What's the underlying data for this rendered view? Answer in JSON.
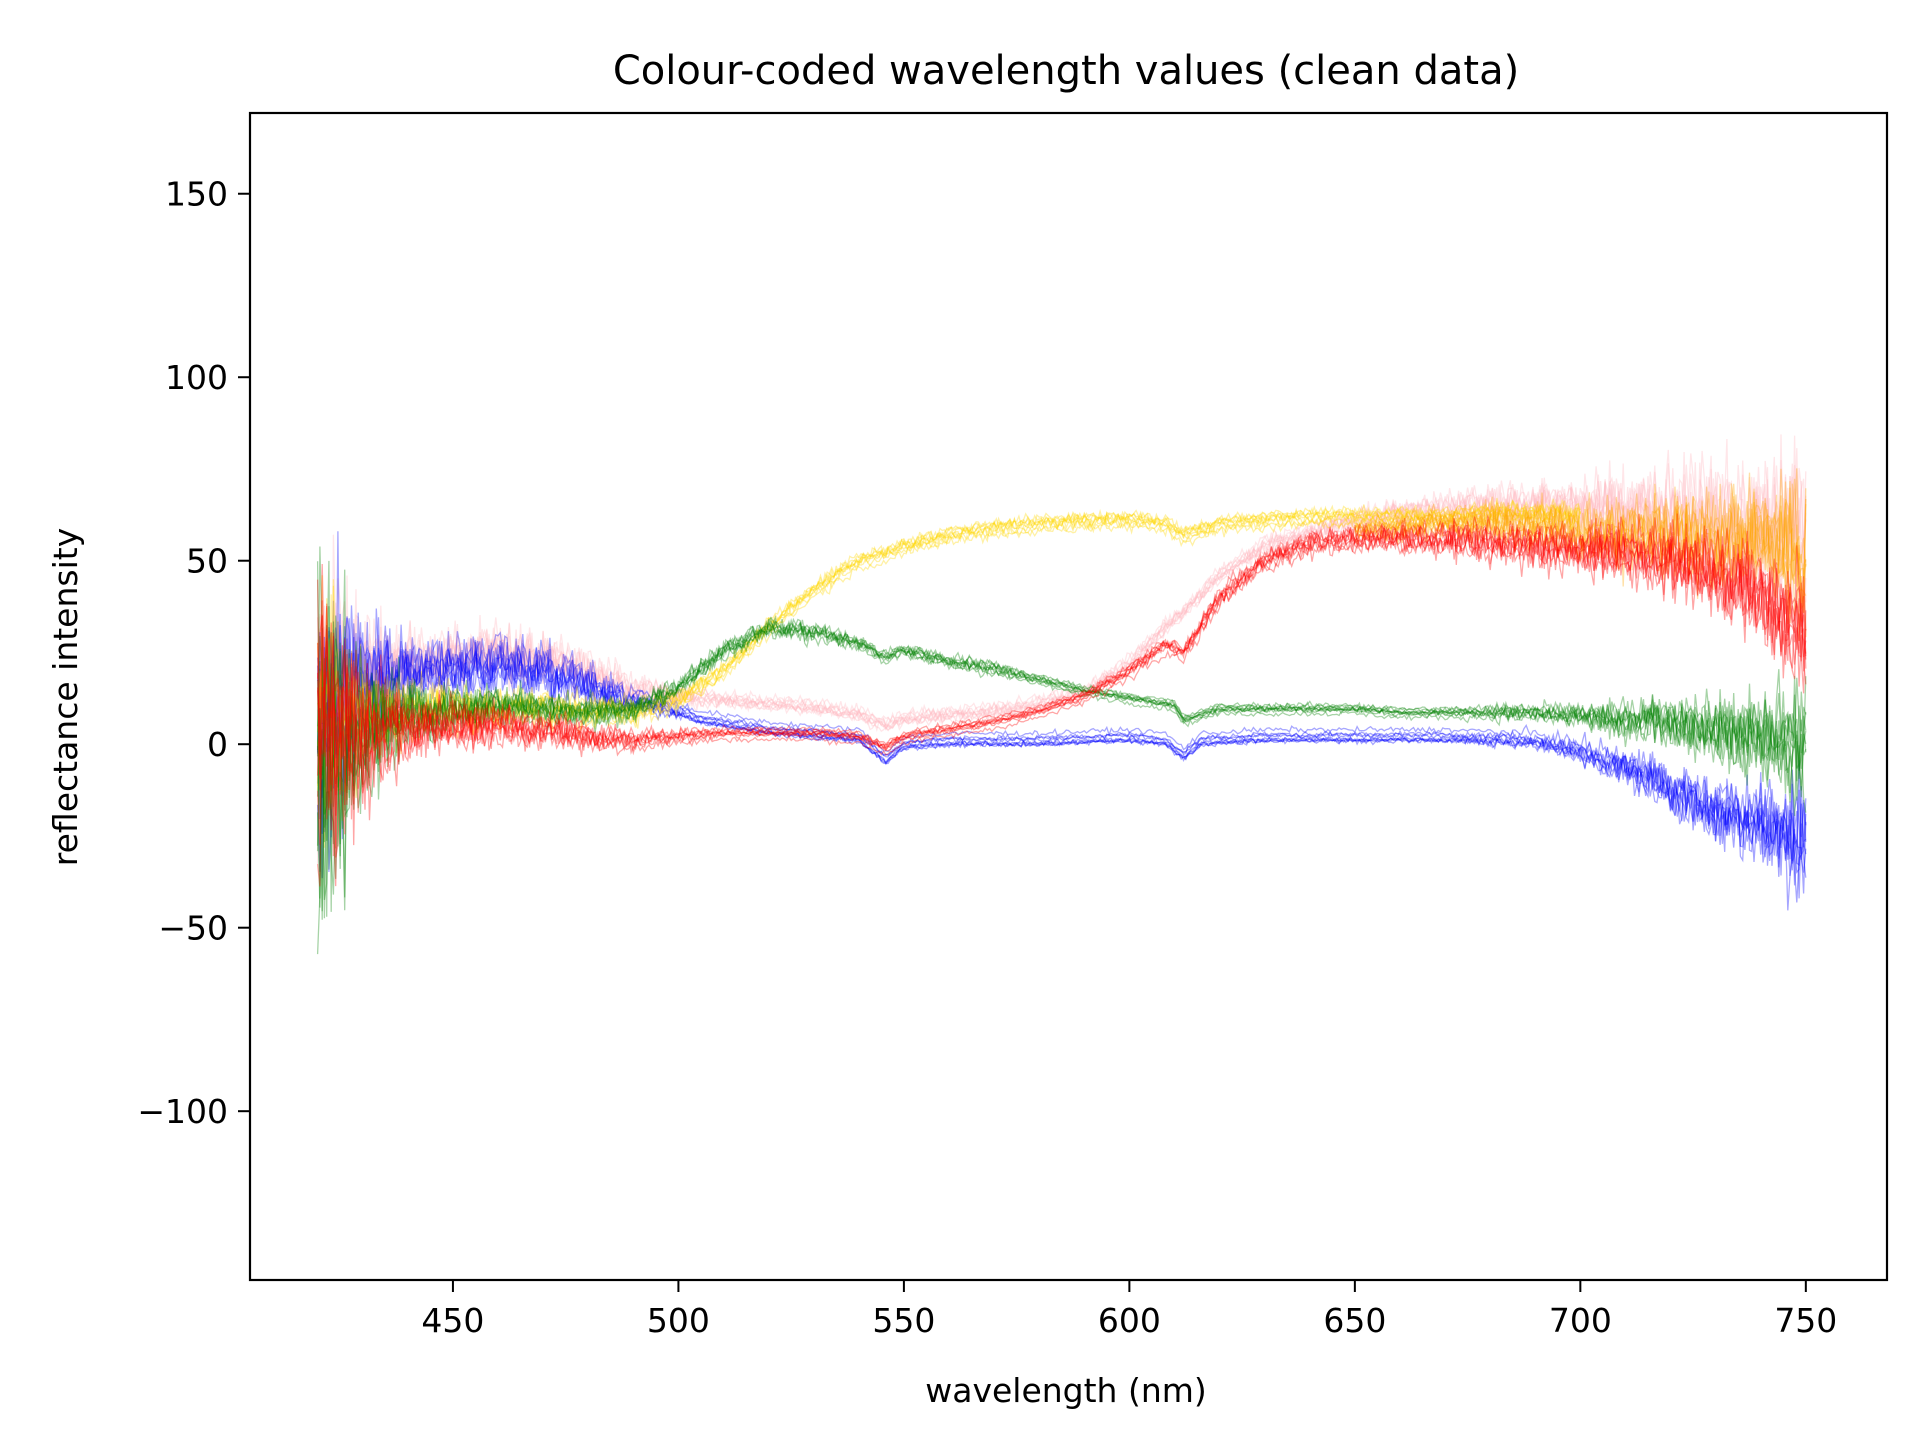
{
  "chart_data": {
    "type": "line",
    "title": "Colour-coded wavelength values (clean data)",
    "xlabel": "wavelength (nm)",
    "ylabel": "reflectance intensity",
    "xlim": [
      405,
      768
    ],
    "ylim": [
      -146,
      172
    ],
    "xticks": [
      450,
      500,
      550,
      600,
      650,
      700,
      750
    ],
    "yticks": [
      -100,
      -50,
      0,
      50,
      100,
      150
    ],
    "ytick_labels": [
      "−100",
      "−50",
      "0",
      "50",
      "100",
      "150"
    ],
    "grid": false,
    "legend": "none",
    "x_range": [
      420,
      751
    ],
    "series": [
      {
        "color": "#ffb6c1",
        "x": [
          420,
          430,
          440,
          450,
          460,
          470,
          480,
          490,
          500,
          510,
          520,
          530,
          540,
          546,
          550,
          560,
          570,
          580,
          590,
          600,
          608,
          612,
          620,
          630,
          640,
          650,
          660,
          670,
          680,
          690,
          700,
          710,
          720,
          730,
          740,
          750
        ],
        "values": [
          10,
          18,
          22,
          24,
          25,
          24,
          20,
          15,
          13,
          12,
          11,
          10,
          8,
          5,
          7,
          8,
          9,
          11,
          14,
          22,
          32,
          36,
          46,
          54,
          58,
          61,
          63,
          64,
          65,
          65,
          64,
          63,
          62,
          60,
          58,
          55
        ],
        "noise": [
          60,
          25,
          12,
          10,
          10,
          9,
          7,
          5,
          3,
          2,
          2,
          2,
          2,
          2,
          2,
          2,
          2,
          2,
          2,
          2,
          2,
          2,
          2,
          3,
          3,
          4,
          5,
          6,
          7,
          8,
          10,
          13,
          17,
          20,
          24,
          30
        ]
      },
      {
        "color": "#0000ff",
        "x": [
          420,
          430,
          440,
          450,
          460,
          470,
          480,
          490,
          500,
          505,
          510,
          520,
          530,
          540,
          546,
          550,
          560,
          580,
          600,
          608,
          612,
          616,
          630,
          650,
          670,
          690,
          700,
          710,
          720,
          730,
          740,
          750
        ],
        "values": [
          5,
          18,
          20,
          21,
          22,
          20,
          16,
          12,
          9,
          7,
          6,
          4,
          3,
          2,
          -4,
          0,
          1,
          1,
          2,
          1,
          -3,
          1,
          2,
          2,
          2,
          1,
          -2,
          -6,
          -12,
          -18,
          -22,
          -26
        ],
        "noise": [
          60,
          25,
          12,
          10,
          10,
          9,
          7,
          4,
          2,
          1,
          1,
          1,
          1,
          1,
          1,
          1,
          1,
          1,
          1,
          1,
          1,
          1,
          1,
          1,
          1,
          2,
          3,
          6,
          9,
          11,
          15,
          25
        ]
      },
      {
        "color": "#ffd700",
        "x": [
          420,
          430,
          440,
          450,
          460,
          470,
          480,
          490,
          500,
          510,
          520,
          530,
          540,
          546,
          550,
          560,
          570,
          580,
          590,
          600,
          608,
          612,
          620,
          630,
          640,
          650,
          660,
          670,
          680,
          690,
          700
        ],
        "values": [
          8,
          8,
          9,
          10,
          10,
          10,
          9,
          9,
          12,
          20,
          32,
          42,
          50,
          52,
          54,
          57,
          59,
          60,
          61,
          61,
          60,
          57,
          60,
          61,
          62,
          62,
          62,
          62,
          63,
          63,
          62
        ],
        "noise": [
          50,
          20,
          10,
          8,
          7,
          6,
          5,
          4,
          3,
          2,
          2,
          2,
          2,
          2,
          2,
          2,
          2,
          2,
          2,
          2,
          2,
          2,
          2,
          2,
          2,
          2,
          2,
          2,
          3,
          3,
          4
        ]
      },
      {
        "color": "#008000",
        "x": [
          420,
          430,
          440,
          450,
          460,
          470,
          480,
          490,
          500,
          510,
          520,
          530,
          540,
          546,
          550,
          560,
          570,
          580,
          590,
          600,
          610,
          612,
          620,
          630,
          640,
          650,
          660,
          670,
          680,
          690,
          700,
          710,
          720,
          730,
          740,
          750
        ],
        "values": [
          -10,
          5,
          8,
          10,
          11,
          10,
          9,
          10,
          16,
          26,
          32,
          31,
          28,
          24,
          26,
          23,
          21,
          18,
          15,
          13,
          11,
          7,
          10,
          10,
          10,
          10,
          9,
          9,
          9,
          9,
          8,
          7,
          6,
          4,
          2,
          0
        ],
        "noise": [
          70,
          25,
          12,
          8,
          7,
          6,
          5,
          4,
          3,
          3,
          3,
          3,
          2,
          2,
          2,
          2,
          2,
          1,
          1,
          1,
          1,
          1,
          1,
          1,
          1,
          1,
          1,
          1,
          2,
          3,
          4,
          7,
          9,
          11,
          14,
          22
        ]
      },
      {
        "color": "#ffa500",
        "x": [
          650,
          660,
          670,
          680,
          690,
          700,
          710,
          720,
          730,
          740,
          750
        ],
        "values": [
          58,
          59,
          60,
          60,
          59,
          58,
          57,
          57,
          56,
          55,
          52
        ],
        "noise": [
          3,
          4,
          5,
          6,
          8,
          10,
          13,
          15,
          17,
          20,
          30
        ]
      },
      {
        "color": "#ff0000",
        "x": [
          420,
          430,
          440,
          450,
          460,
          470,
          480,
          490,
          500,
          510,
          520,
          530,
          540,
          546,
          550,
          560,
          570,
          580,
          590,
          600,
          608,
          612,
          620,
          630,
          640,
          650,
          660,
          670,
          680,
          690,
          700,
          710,
          720,
          730,
          740,
          750
        ],
        "values": [
          0,
          3,
          4,
          5,
          5,
          4,
          2,
          1,
          2,
          3,
          3,
          3,
          2,
          -1,
          2,
          4,
          6,
          9,
          13,
          20,
          27,
          25,
          40,
          50,
          55,
          56,
          56,
          56,
          55,
          54,
          53,
          52,
          50,
          46,
          40,
          30
        ],
        "noise": [
          60,
          25,
          10,
          8,
          7,
          6,
          5,
          3,
          2,
          1,
          1,
          1,
          1,
          1,
          1,
          1,
          1,
          1,
          1,
          2,
          2,
          2,
          3,
          3,
          4,
          4,
          5,
          6,
          7,
          8,
          9,
          11,
          13,
          15,
          18,
          22
        ]
      }
    ]
  }
}
